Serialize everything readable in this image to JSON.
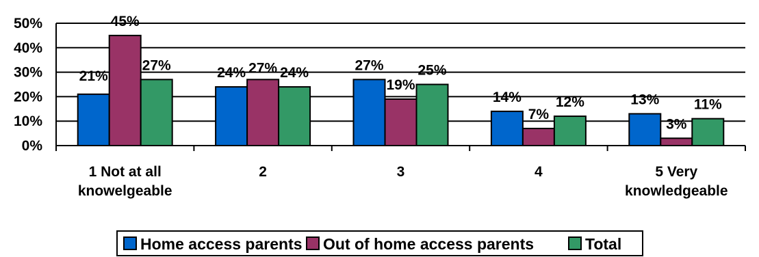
{
  "chart_data": {
    "type": "bar",
    "categories": [
      [
        "1    Not at all",
        "knowelgeable"
      ],
      [
        "2"
      ],
      [
        "3"
      ],
      [
        "4"
      ],
      [
        "5   Very",
        "knowledgeable"
      ]
    ],
    "series": [
      {
        "name": "Home access parents",
        "values": [
          21,
          24,
          27,
          14,
          13
        ],
        "labels": [
          "21%",
          "24%",
          "27%",
          "14%",
          "13%"
        ],
        "color": "#0066CC"
      },
      {
        "name": "Out of home access parents",
        "values": [
          45,
          27,
          19,
          7,
          3
        ],
        "labels": [
          "45%",
          "27%",
          "19%",
          "7%",
          "3%"
        ],
        "color": "#993366"
      },
      {
        "name": "Total",
        "values": [
          27,
          24,
          25,
          12,
          11
        ],
        "labels": [
          "27%",
          "24%",
          "25%",
          "12%",
          "11%"
        ],
        "color": "#339966"
      }
    ],
    "yticks": [
      "0%",
      "10%",
      "20%",
      "30%",
      "40%",
      "50%"
    ],
    "ylim": [
      0,
      50
    ],
    "grid": true,
    "legend_position": "bottom"
  }
}
